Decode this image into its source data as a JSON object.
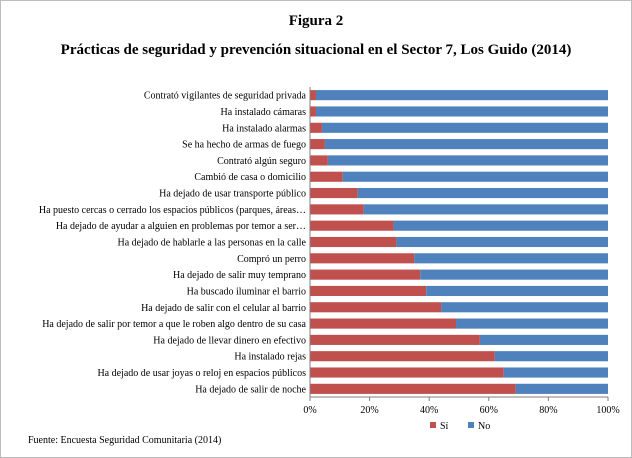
{
  "figure_label": "Figura 2",
  "source": "Fuente: Encuesta Seguridad Comunitaria (2014)",
  "colors": {
    "si": "#c0504d",
    "no": "#4f81bd",
    "axis": "#7f7f7f"
  },
  "chart_data": {
    "type": "bar",
    "orientation": "horizontal",
    "stacked": "percent",
    "title": "Prácticas de seguridad y prevención situacional en el Sector 7, Los Guido (2014)",
    "xlabel": "",
    "ylabel": "",
    "xlim": [
      0,
      100
    ],
    "x_ticks": [
      "0%",
      "20%",
      "40%",
      "60%",
      "80%",
      "100%"
    ],
    "legend_position": "bottom",
    "grid": false,
    "categories": [
      "Contrató vigilantes de seguridad privada",
      "Ha instalado cámaras",
      "Ha instalado alarmas",
      "Se ha hecho de armas de fuego",
      "Contrató algún seguro",
      "Cambió de casa o domicilio",
      "Ha dejado de usar transporte público",
      "Ha puesto cercas o cerrado los espacios públicos (parques, áreas…",
      "Ha dejado de ayudar a alguien en problemas por temor a ser…",
      "Ha dejado de hablarle a las personas en la calle",
      "Compró un perro",
      "Ha dejado de salir muy temprano",
      "Ha buscado iluminar el barrio",
      "Ha dejado de salir con el celular al barrio",
      "Ha dejado de salir por temor a que le roben algo dentro de su casa",
      "Ha dejado de llevar dinero en efectivo",
      "Ha instalado rejas",
      "Ha dejado de usar joyas o reloj en espacios públicos",
      "Ha dejado de salir de noche"
    ],
    "series": [
      {
        "name": "Sí",
        "values": [
          2,
          2,
          4,
          5,
          6,
          11,
          16,
          18,
          28,
          29,
          35,
          37,
          39,
          44,
          49,
          57,
          62,
          65,
          69
        ]
      },
      {
        "name": "No",
        "values": [
          98,
          98,
          96,
          95,
          94,
          89,
          84,
          82,
          72,
          71,
          65,
          63,
          61,
          56,
          51,
          43,
          38,
          35,
          31
        ]
      }
    ]
  }
}
